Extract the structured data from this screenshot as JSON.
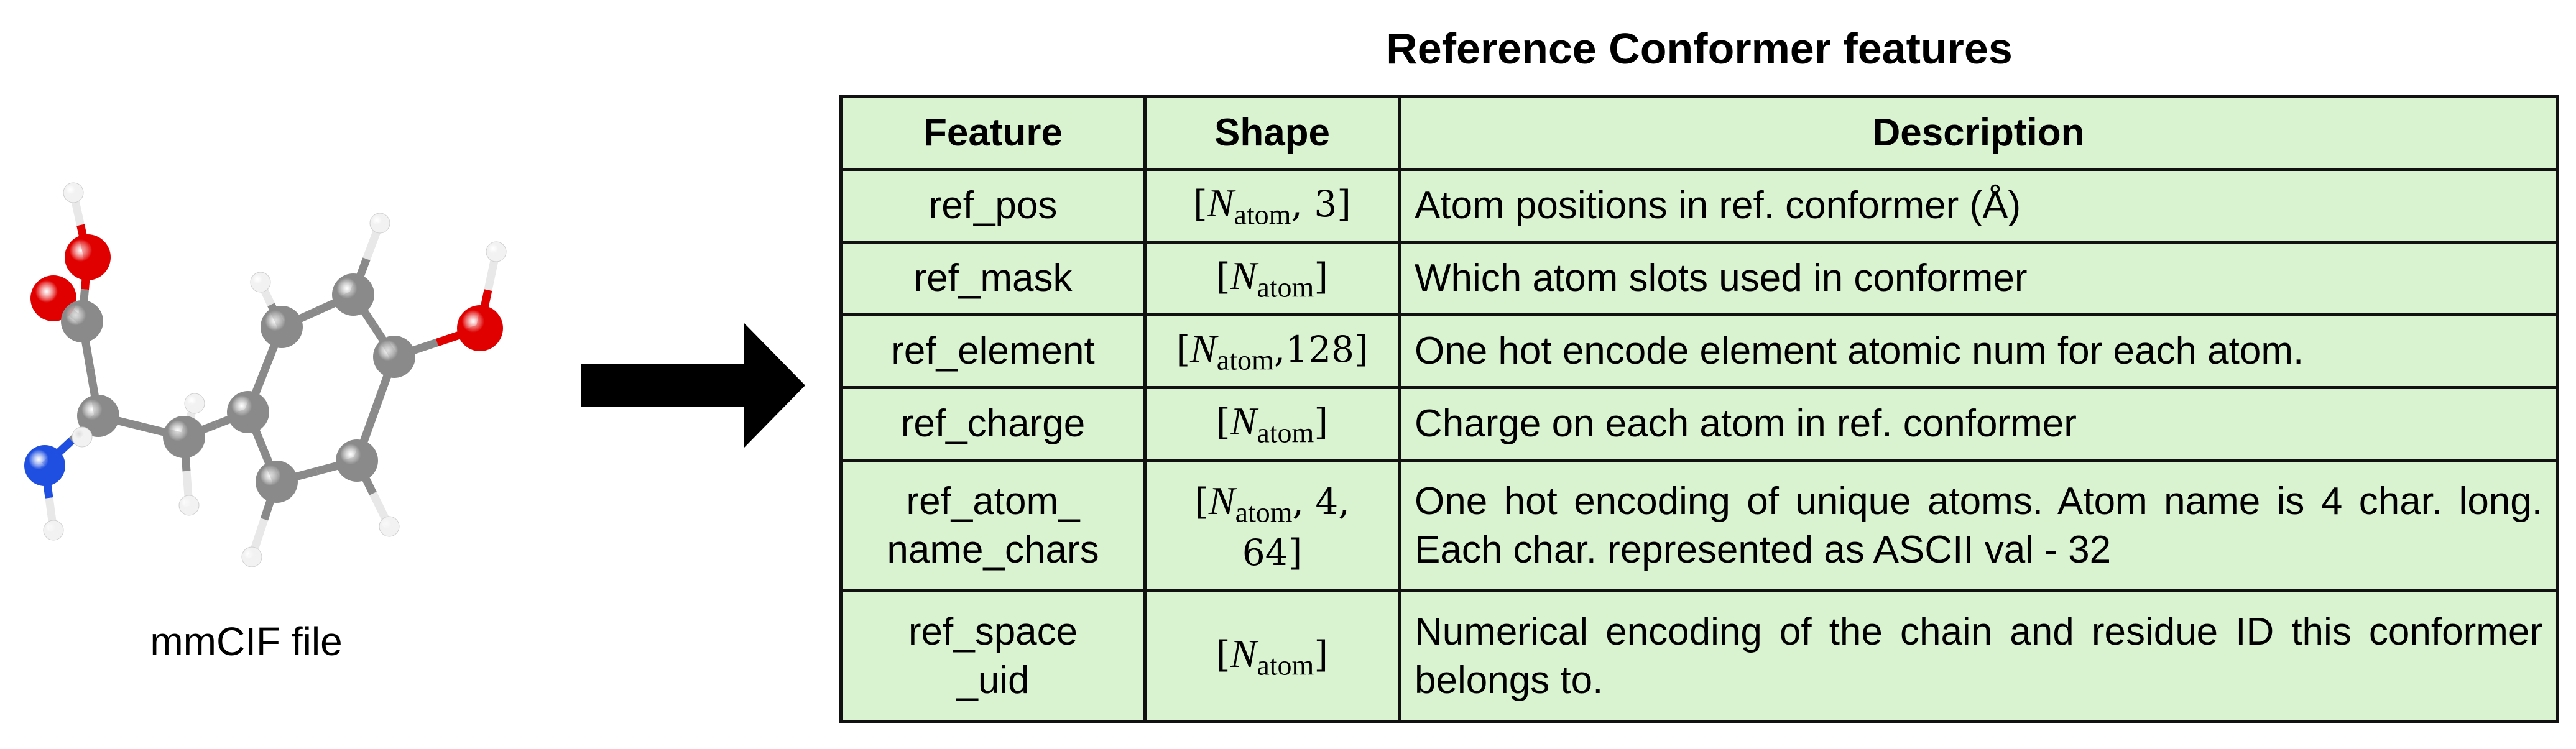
{
  "molecule": {
    "label": "mmCIF file",
    "atom_colors": {
      "C": "#8a8a8a",
      "O": "#e00000",
      "N": "#1f4fe0",
      "H": "#f2f2f2"
    }
  },
  "arrow": {
    "icon": "right-arrow-icon",
    "color": "#000000"
  },
  "table": {
    "title": "Reference Conformer features",
    "background": "#d9f2d0",
    "headers": {
      "feature": "Feature",
      "shape": "Shape",
      "description": "Description"
    },
    "rows": [
      {
        "feature": "ref_pos",
        "shape": {
          "open": "[",
          "symbol": "N",
          "sub": "atom",
          "rest": ", 3]"
        },
        "description": "Atom positions in ref. conformer (Å)"
      },
      {
        "feature": "ref_mask",
        "shape": {
          "open": "[",
          "symbol": "N",
          "sub": "atom",
          "rest": "]"
        },
        "description": "Which atom slots used in conformer"
      },
      {
        "feature": "ref_element",
        "shape": {
          "open": "[",
          "symbol": "N",
          "sub": "atom",
          "rest": ",128]"
        },
        "description": "One hot encode element atomic num for each atom."
      },
      {
        "feature": "ref_charge",
        "shape": {
          "open": "[",
          "symbol": "N",
          "sub": "atom",
          "rest": "]"
        },
        "description": "Charge on each atom in ref. conformer"
      },
      {
        "feature": "ref_atom_\nname_chars",
        "shape": {
          "open": "[",
          "symbol": "N",
          "sub": "atom",
          "rest": ", 4, 64]"
        },
        "description": "One hot encoding of unique atoms. Atom name is 4 char. long. Each char. represented as ASCII val - 32"
      },
      {
        "feature": "ref_space\n_uid",
        "shape": {
          "open": "[",
          "symbol": "N",
          "sub": "atom",
          "rest": "]"
        },
        "description": "Numerical encoding of the chain and residue ID this conformer belongs to."
      }
    ]
  }
}
